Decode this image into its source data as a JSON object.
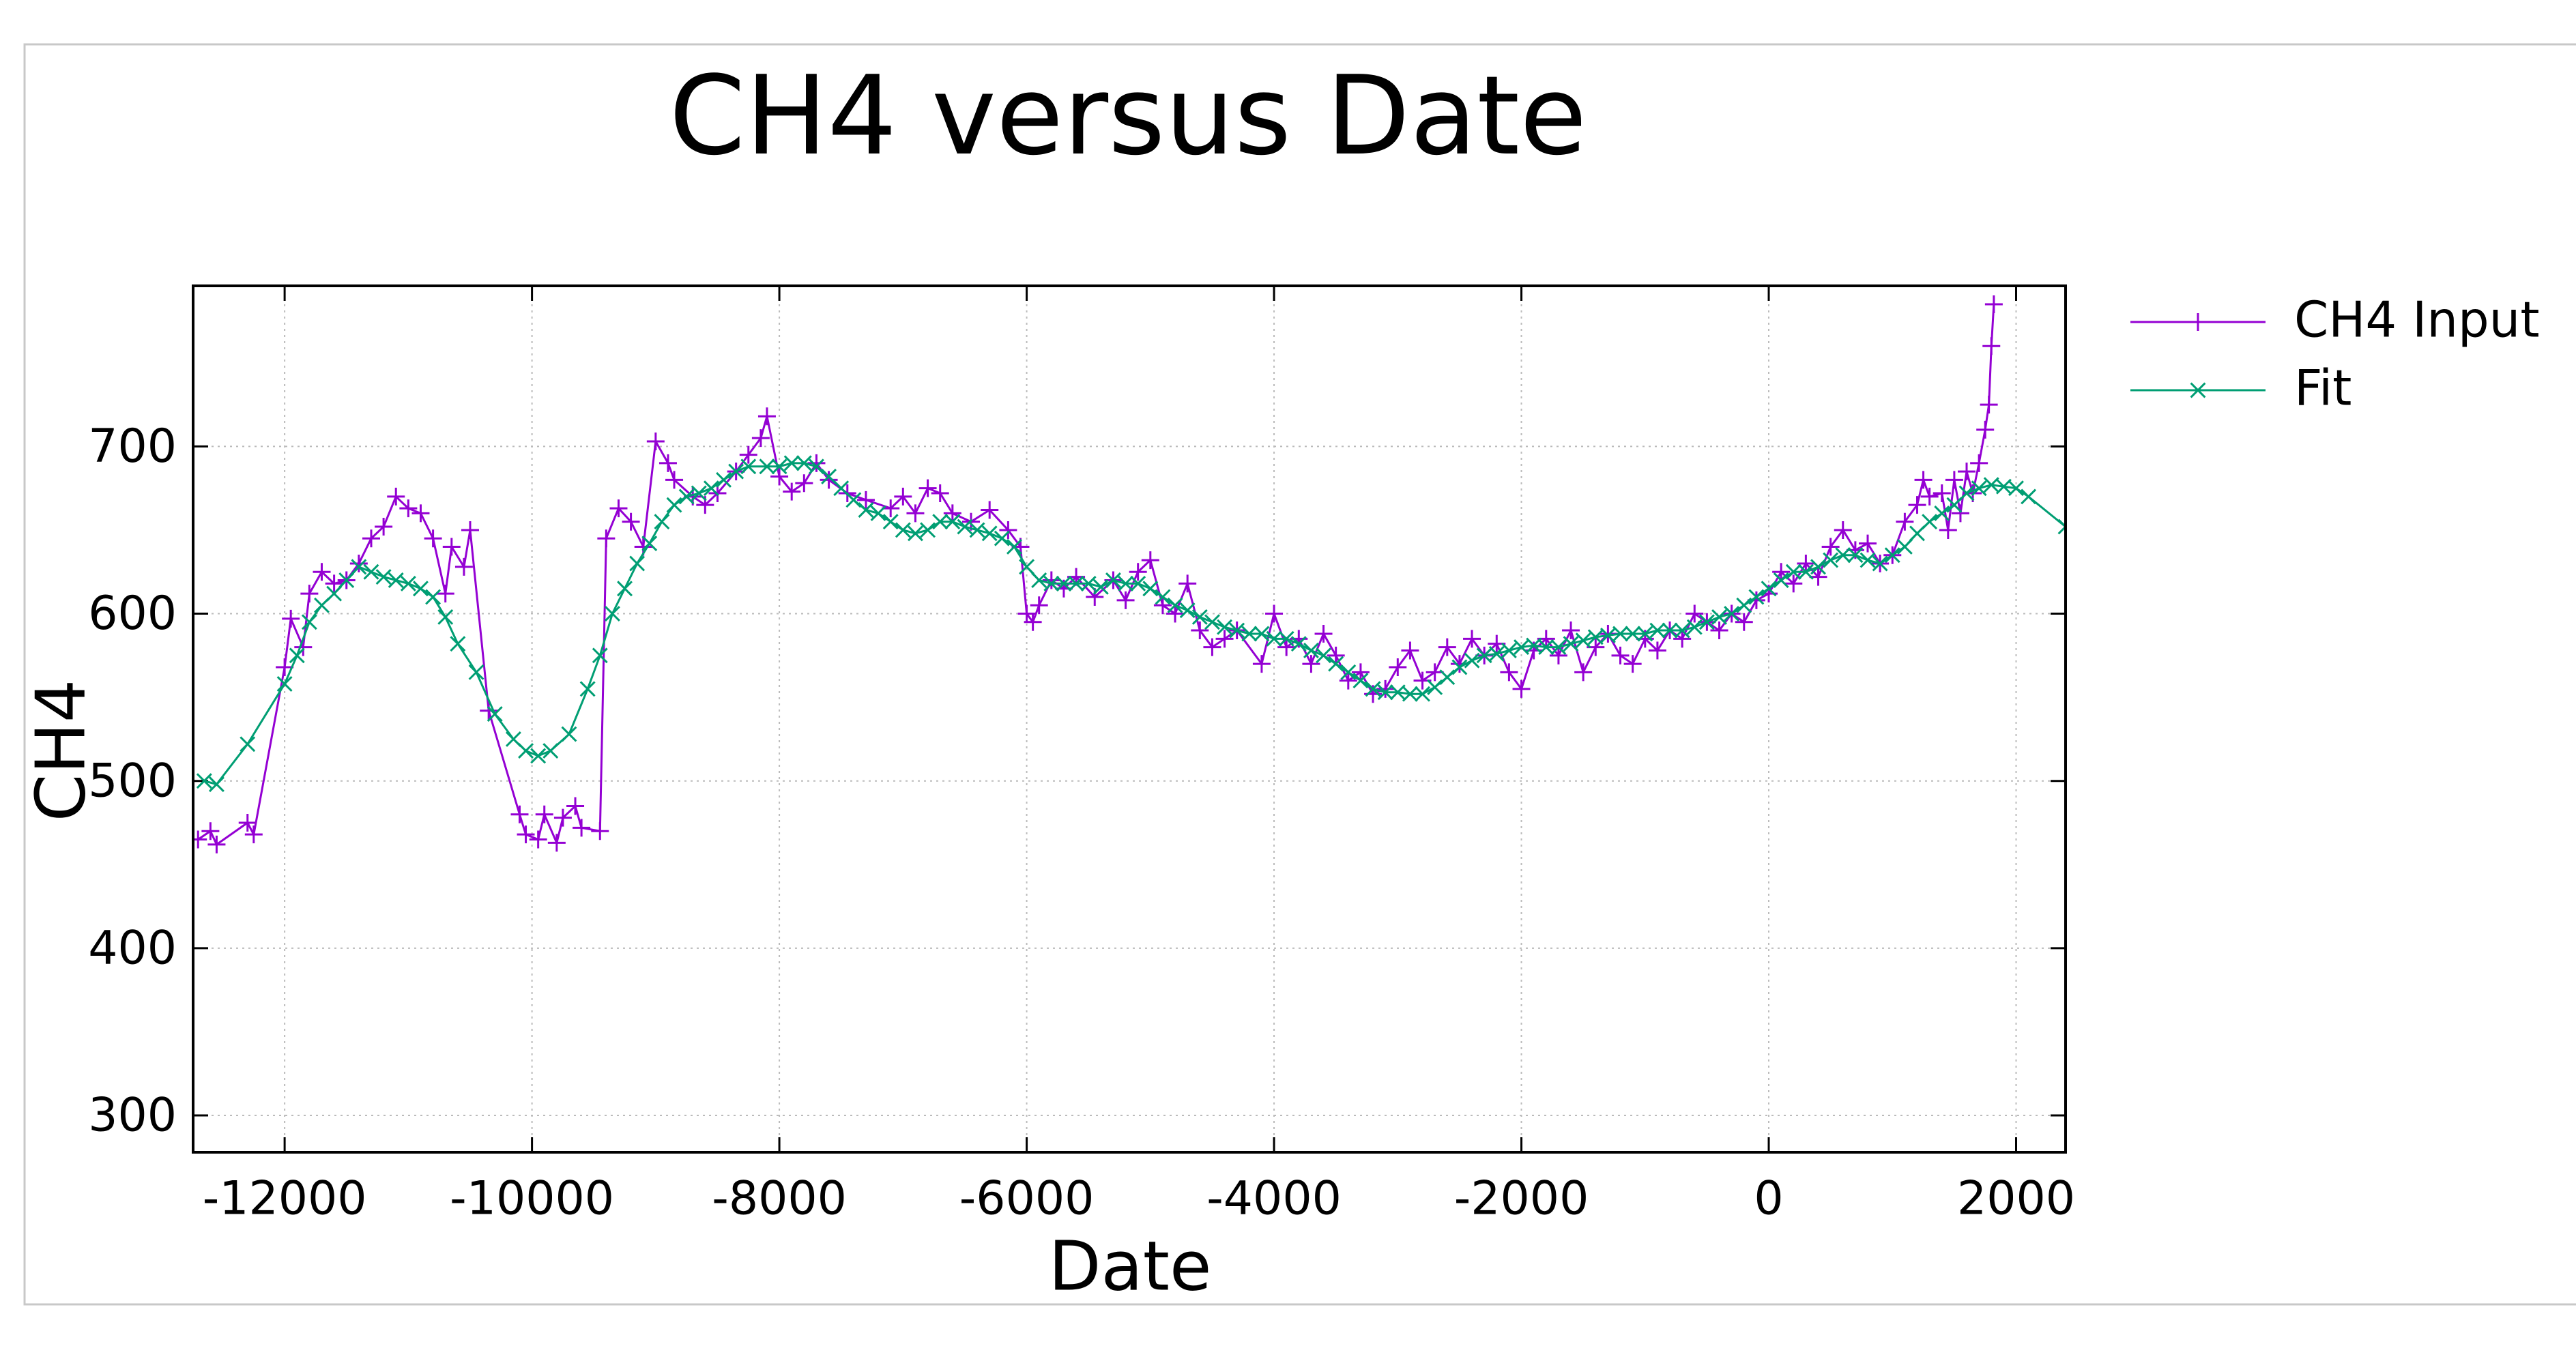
{
  "chart_data": {
    "type": "line",
    "title": "CH4 versus Date",
    "x_label": "Date",
    "y_label": "CH4",
    "xlim": [
      -12740,
      2400
    ],
    "ylim": [
      278,
      796
    ],
    "xticks": [
      -12000,
      -10000,
      -8000,
      -6000,
      -4000,
      -2000,
      0,
      2000
    ],
    "yticks": [
      300,
      400,
      500,
      600,
      700
    ],
    "grid": true,
    "legend": "outside-right",
    "series": [
      {
        "name": "CH4 Input",
        "color": "#9400d3",
        "marker": "plus",
        "x": [
          -12700,
          -12600,
          -12550,
          -12300,
          -12250,
          -12000,
          -11950,
          -11850,
          -11800,
          -11700,
          -11600,
          -11500,
          -11400,
          -11300,
          -11200,
          -11100,
          -11000,
          -10900,
          -10800,
          -10700,
          -10650,
          -10550,
          -10500,
          -10350,
          -10100,
          -10050,
          -9950,
          -9900,
          -9800,
          -9750,
          -9650,
          -9600,
          -9450,
          -9400,
          -9300,
          -9200,
          -9100,
          -9000,
          -8900,
          -8850,
          -8700,
          -8600,
          -8500,
          -8350,
          -8250,
          -8150,
          -8100,
          -8000,
          -7900,
          -7800,
          -7700,
          -7600,
          -7450,
          -7300,
          -7100,
          -7000,
          -6900,
          -6800,
          -6700,
          -6600,
          -6450,
          -6300,
          -6150,
          -6050,
          -6000,
          -5950,
          -5900,
          -5800,
          -5700,
          -5600,
          -5450,
          -5300,
          -5200,
          -5100,
          -5000,
          -4900,
          -4800,
          -4700,
          -4600,
          -4500,
          -4400,
          -4300,
          -4100,
          -4000,
          -3900,
          -3800,
          -3700,
          -3600,
          -3500,
          -3400,
          -3300,
          -3200,
          -3100,
          -3000,
          -2900,
          -2800,
          -2700,
          -2600,
          -2500,
          -2400,
          -2300,
          -2200,
          -2100,
          -2000,
          -1900,
          -1800,
          -1700,
          -1600,
          -1500,
          -1400,
          -1300,
          -1200,
          -1100,
          -1000,
          -900,
          -800,
          -700,
          -600,
          -500,
          -400,
          -300,
          -200,
          -100,
          0,
          100,
          200,
          300,
          400,
          500,
          600,
          700,
          800,
          900,
          1000,
          1100,
          1200,
          1250,
          1300,
          1400,
          1450,
          1500,
          1550,
          1600,
          1650,
          1700,
          1750,
          1780,
          1800,
          1820
        ],
        "values": [
          465,
          470,
          462,
          475,
          468,
          568,
          597,
          580,
          612,
          625,
          618,
          620,
          630,
          645,
          652,
          670,
          663,
          660,
          645,
          612,
          640,
          628,
          650,
          542,
          480,
          468,
          465,
          480,
          463,
          478,
          485,
          472,
          470,
          645,
          663,
          655,
          640,
          703,
          690,
          680,
          670,
          665,
          672,
          685,
          695,
          705,
          718,
          682,
          673,
          678,
          690,
          680,
          672,
          668,
          663,
          670,
          660,
          675,
          672,
          660,
          655,
          662,
          650,
          640,
          600,
          595,
          605,
          620,
          615,
          622,
          610,
          620,
          608,
          625,
          632,
          605,
          600,
          618,
          590,
          580,
          585,
          590,
          570,
          600,
          580,
          585,
          570,
          588,
          575,
          560,
          565,
          552,
          555,
          568,
          578,
          560,
          565,
          580,
          570,
          585,
          575,
          582,
          565,
          555,
          578,
          585,
          575,
          590,
          565,
          580,
          588,
          575,
          570,
          585,
          578,
          590,
          585,
          600,
          595,
          590,
          600,
          595,
          608,
          612,
          625,
          618,
          630,
          622,
          640,
          650,
          638,
          642,
          630,
          635,
          655,
          665,
          680,
          670,
          672,
          650,
          680,
          660,
          685,
          672,
          690,
          710,
          725,
          760,
          785
        ]
      },
      {
        "name": "Fit",
        "color": "#009e73",
        "marker": "cross",
        "x": [
          -12650,
          -12550,
          -12300,
          -12000,
          -11900,
          -11800,
          -11700,
          -11600,
          -11500,
          -11400,
          -11300,
          -11200,
          -11100,
          -11000,
          -10900,
          -10800,
          -10700,
          -10600,
          -10450,
          -10300,
          -10150,
          -10050,
          -9950,
          -9850,
          -9700,
          -9550,
          -9450,
          -9350,
          -9250,
          -9150,
          -9050,
          -8950,
          -8850,
          -8750,
          -8650,
          -8550,
          -8450,
          -8350,
          -8250,
          -8100,
          -8000,
          -7900,
          -7800,
          -7700,
          -7600,
          -7500,
          -7400,
          -7300,
          -7200,
          -7100,
          -7000,
          -6900,
          -6800,
          -6700,
          -6600,
          -6500,
          -6400,
          -6300,
          -6200,
          -6100,
          -6000,
          -5900,
          -5800,
          -5700,
          -5600,
          -5500,
          -5400,
          -5300,
          -5200,
          -5100,
          -5000,
          -4900,
          -4800,
          -4700,
          -4600,
          -4500,
          -4400,
          -4300,
          -4200,
          -4100,
          -4000,
          -3900,
          -3800,
          -3700,
          -3600,
          -3500,
          -3400,
          -3300,
          -3200,
          -3100,
          -3000,
          -2900,
          -2800,
          -2700,
          -2600,
          -2500,
          -2400,
          -2300,
          -2200,
          -2100,
          -2000,
          -1900,
          -1800,
          -1700,
          -1600,
          -1500,
          -1400,
          -1300,
          -1200,
          -1100,
          -1000,
          -900,
          -800,
          -700,
          -600,
          -500,
          -400,
          -300,
          -200,
          -100,
          0,
          100,
          200,
          300,
          400,
          500,
          600,
          700,
          800,
          900,
          1000,
          1100,
          1200,
          1300,
          1400,
          1500,
          1600,
          1700,
          1800,
          1900,
          2000,
          2100,
          2400
        ],
        "values": [
          500,
          498,
          522,
          558,
          575,
          595,
          605,
          612,
          620,
          628,
          625,
          622,
          620,
          618,
          615,
          610,
          598,
          582,
          565,
          540,
          525,
          518,
          515,
          518,
          528,
          555,
          575,
          600,
          615,
          630,
          642,
          655,
          665,
          670,
          672,
          675,
          680,
          685,
          688,
          688,
          688,
          690,
          690,
          688,
          682,
          675,
          668,
          662,
          660,
          655,
          650,
          648,
          650,
          655,
          655,
          652,
          650,
          648,
          645,
          640,
          628,
          620,
          618,
          618,
          618,
          618,
          616,
          620,
          618,
          618,
          615,
          610,
          605,
          602,
          598,
          595,
          592,
          590,
          588,
          588,
          585,
          585,
          582,
          578,
          575,
          570,
          565,
          560,
          555,
          553,
          553,
          552,
          552,
          556,
          562,
          568,
          572,
          575,
          576,
          578,
          580,
          581,
          580,
          580,
          582,
          584,
          586,
          587,
          588,
          588,
          588,
          590,
          590,
          590,
          592,
          595,
          598,
          600,
          605,
          610,
          615,
          620,
          625,
          625,
          628,
          632,
          635,
          635,
          632,
          630,
          635,
          640,
          648,
          655,
          660,
          665,
          672,
          675,
          677,
          676,
          675,
          670,
          652
        ]
      }
    ]
  }
}
